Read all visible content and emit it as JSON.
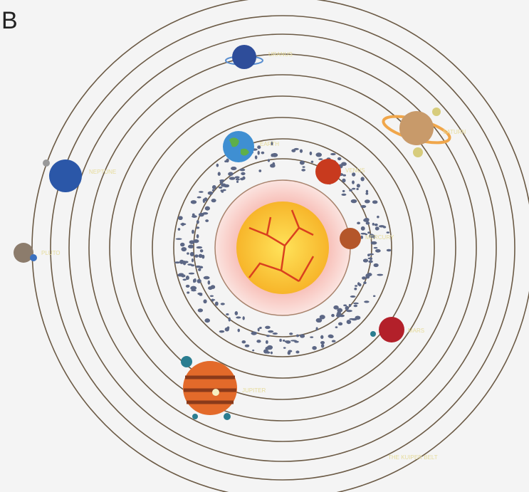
{
  "panel_label": "B",
  "labels": [
    "URANUS",
    "SATURN",
    "EARTH",
    "NEPTUNE",
    "VENUS",
    "MERCURY",
    "PLUTO",
    "MARS",
    "JUPITER"
  ],
  "belt_label": "THE KUIPER BELT"
}
